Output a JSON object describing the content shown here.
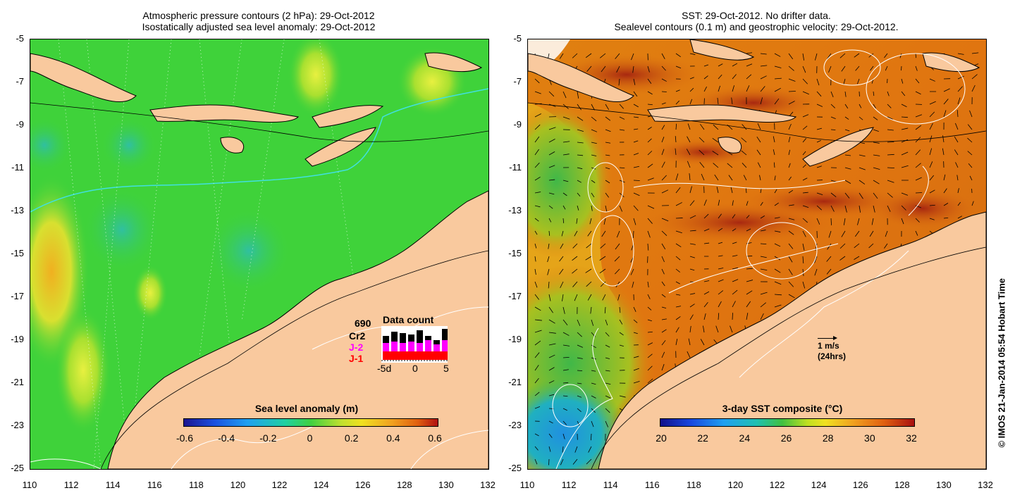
{
  "left_panel": {
    "title_line1": "Atmospheric pressure contours (2 hPa): 29-Oct-2012",
    "title_line2": "Isostatically adjusted sea level anomaly: 29-Oct-2012",
    "colorbar_title": "Sea level anomaly (m)",
    "colorbar_ticks": [
      "-0.6",
      "-0.4",
      "-0.2",
      "0",
      "0.2",
      "0.4",
      "0.6"
    ],
    "data_count": {
      "label": "Data count",
      "number": "690",
      "satellites": [
        {
          "name": "Cr2",
          "color": "#000000"
        },
        {
          "name": "J-2",
          "color": "#ff00ff"
        },
        {
          "name": "J-1",
          "color": "#ff0000"
        }
      ],
      "axis_ticks": [
        "-5d",
        "0",
        "5"
      ]
    }
  },
  "right_panel": {
    "title_line1": "SST: 29-Oct-2012. No drifter data.",
    "title_line2": "Sealevel contours (0.1 m) and geostrophic velocity: 29-Oct-2012.",
    "colorbar_title": "3-day SST composite (°C)",
    "colorbar_ticks": [
      "20",
      "22",
      "24",
      "26",
      "28",
      "30",
      "32"
    ],
    "velocity_scale_line1": "1 m/s",
    "velocity_scale_line2": "(24hrs)"
  },
  "axes": {
    "x_ticks": [
      "110",
      "112",
      "114",
      "116",
      "118",
      "120",
      "122",
      "124",
      "126",
      "128",
      "130",
      "132"
    ],
    "y_ticks": [
      "-5",
      "-7",
      "-9",
      "-11",
      "-13",
      "-15",
      "-17",
      "-19",
      "-21",
      "-23",
      "-25"
    ]
  },
  "copyright": "© IMOS 21-Jan-2014 05:54 Hobart Time",
  "colors": {
    "land": "#f9c99e",
    "ssh_base": "#3fd23a",
    "sst_base": "#e07b12",
    "sst_warm": "#b02e10",
    "sst_cool": "#40c040"
  }
}
